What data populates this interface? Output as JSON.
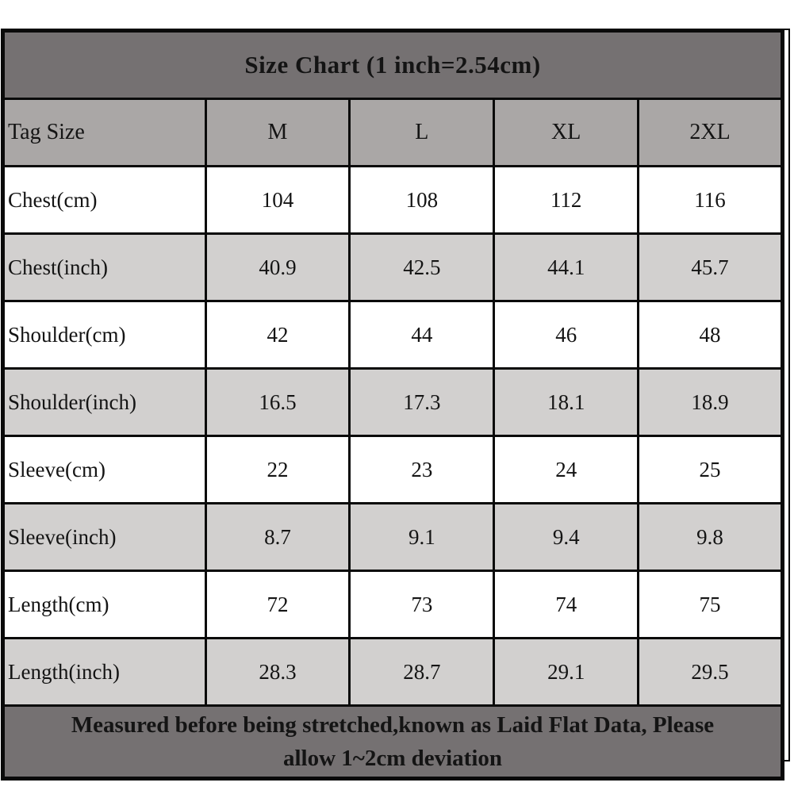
{
  "title": "Size Chart (1 inch=2.54cm)",
  "footer": {
    "line1": "Measured before being stretched,known as Laid Flat Data, Please",
    "line2": "allow 1~2cm deviation"
  },
  "colors": {
    "title_bg": "#757172",
    "footer_bg": "#757172",
    "header_row_bg": "#aaa7a6",
    "alt_row_bg": "#d2d0cf",
    "plain_row_bg": "#ffffff",
    "border": "#0a0a0a",
    "title_text": "#ffffff",
    "cell_text": "#141414"
  },
  "chart_data": {
    "type": "table",
    "title": "Size Chart (1 inch=2.54cm)",
    "columns": [
      "Tag Size",
      "M",
      "L",
      "XL",
      "2XL"
    ],
    "rows": [
      {
        "label": "Chest(cm)",
        "values": [
          104,
          108,
          112,
          116
        ]
      },
      {
        "label": "Chest(inch)",
        "values": [
          40.9,
          42.5,
          44.1,
          45.7
        ]
      },
      {
        "label": "Shoulder(cm)",
        "values": [
          42,
          44,
          46,
          48
        ]
      },
      {
        "label": "Shoulder(inch)",
        "values": [
          16.5,
          17.3,
          18.1,
          18.9
        ]
      },
      {
        "label": "Sleeve(cm)",
        "values": [
          22,
          23,
          24,
          25
        ]
      },
      {
        "label": "Sleeve(inch)",
        "values": [
          8.7,
          9.1,
          9.4,
          9.8
        ]
      },
      {
        "label": "Length(cm)",
        "values": [
          72,
          73,
          74,
          75
        ]
      },
      {
        "label": "Length(inch)",
        "values": [
          28.3,
          28.7,
          29.1,
          29.5
        ]
      }
    ],
    "footnote": "Measured before being stretched,known as Laid Flat Data, Please allow 1~2cm deviation"
  }
}
